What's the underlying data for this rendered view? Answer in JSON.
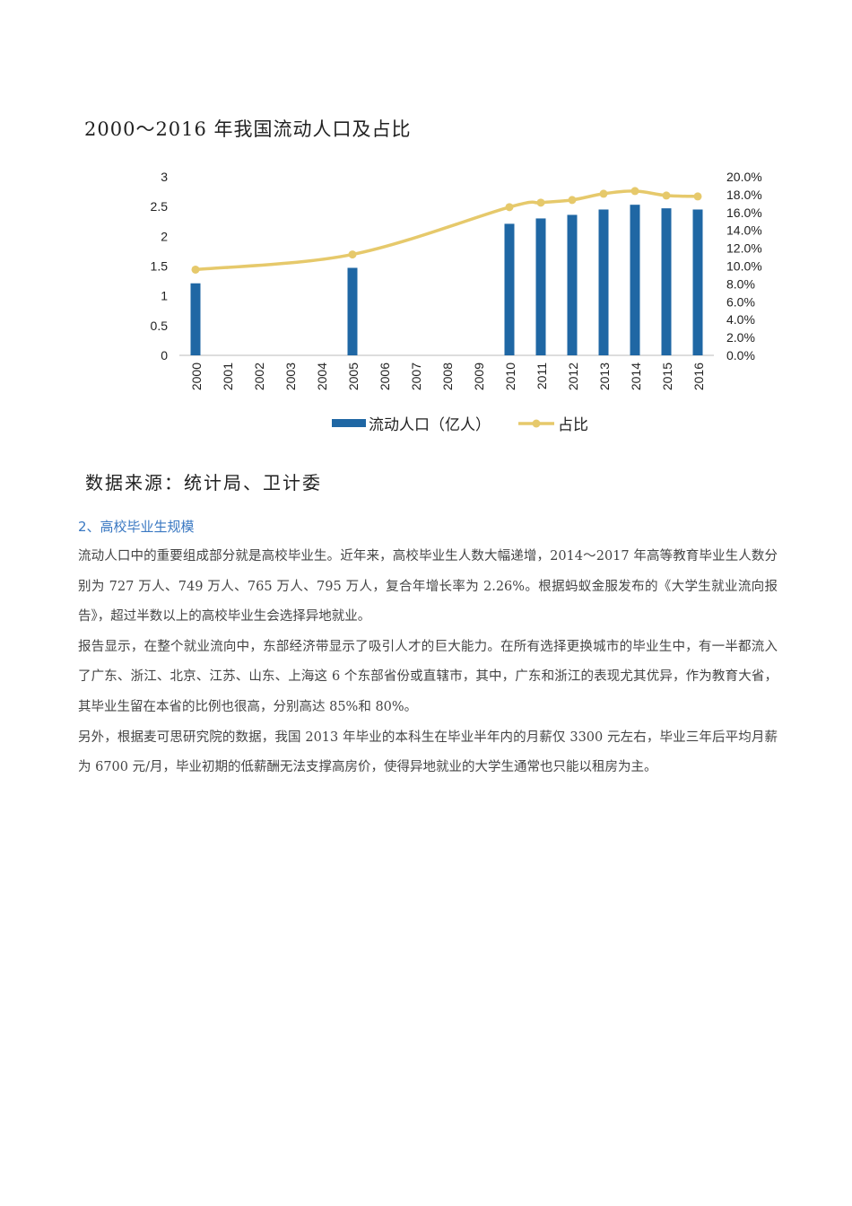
{
  "figure_title": "2000～2016 年我国流动人口及占比",
  "chart_data": {
    "type": "bar+line",
    "title": "",
    "categories": [
      "2000",
      "2001",
      "2002",
      "2003",
      "2004",
      "2005",
      "2006",
      "2007",
      "2008",
      "2009",
      "2010",
      "2011",
      "2012",
      "2013",
      "2014",
      "2015",
      "2016"
    ],
    "series": [
      {
        "name": "流动人口（亿人）",
        "type": "bar",
        "axis": "left",
        "color": "#1f67a4",
        "values": [
          1.21,
          null,
          null,
          null,
          null,
          1.47,
          null,
          null,
          null,
          null,
          2.21,
          2.3,
          2.36,
          2.45,
          2.53,
          2.47,
          2.45
        ]
      },
      {
        "name": "占比",
        "type": "line",
        "axis": "right",
        "color": "#e6c96b",
        "values": [
          9.6,
          null,
          null,
          null,
          null,
          11.3,
          null,
          null,
          null,
          null,
          16.6,
          17.1,
          17.4,
          18.1,
          18.4,
          17.9,
          17.8
        ]
      }
    ],
    "left_axis": {
      "ylim": [
        0,
        3
      ],
      "ticks": [
        "0",
        "0.5",
        "1",
        "1.5",
        "2",
        "2.5",
        "3"
      ]
    },
    "right_axis": {
      "ylim": [
        0,
        20
      ],
      "ticks": [
        "0.0%",
        "2.0%",
        "4.0%",
        "6.0%",
        "8.0%",
        "10.0%",
        "12.0%",
        "14.0%",
        "16.0%",
        "18.0%",
        "20.0%"
      ]
    },
    "grid": false,
    "legend_placement": "bottom"
  },
  "source": "数据来源：统计局、卫计委",
  "section_heading": "2、高校毕业生规模",
  "paragraphs": [
    "流动人口中的重要组成部分就是高校毕业生。近年来，高校毕业生人数大幅递增，2014～2017 年高等教育毕业生人数分别为 727 万人、749 万人、765 万人、795 万人，复合年增长率为 2.26%。根据蚂蚁金服发布的《大学生就业流向报告》，超过半数以上的高校毕业生会选择异地就业。",
    "报告显示，在整个就业流向中，东部经济带显示了吸引人才的巨大能力。在所有选择更换城市的毕业生中，有一半都流入了广东、浙江、北京、江苏、山东、上海这 6 个东部省份或直辖市，其中，广东和浙江的表现尤其优异，作为教育大省，其毕业生留在本省的比例也很高，分别高达 85%和 80%。",
    "另外，根据麦可思研究院的数据，我国 2013 年毕业的本科生在毕业半年内的月薪仅 3300 元左右，毕业三年后平均月薪为 6700 元/月，毕业初期的低薪酬无法支撑高房价，使得异地就业的大学生通常也只能以租房为主。"
  ]
}
